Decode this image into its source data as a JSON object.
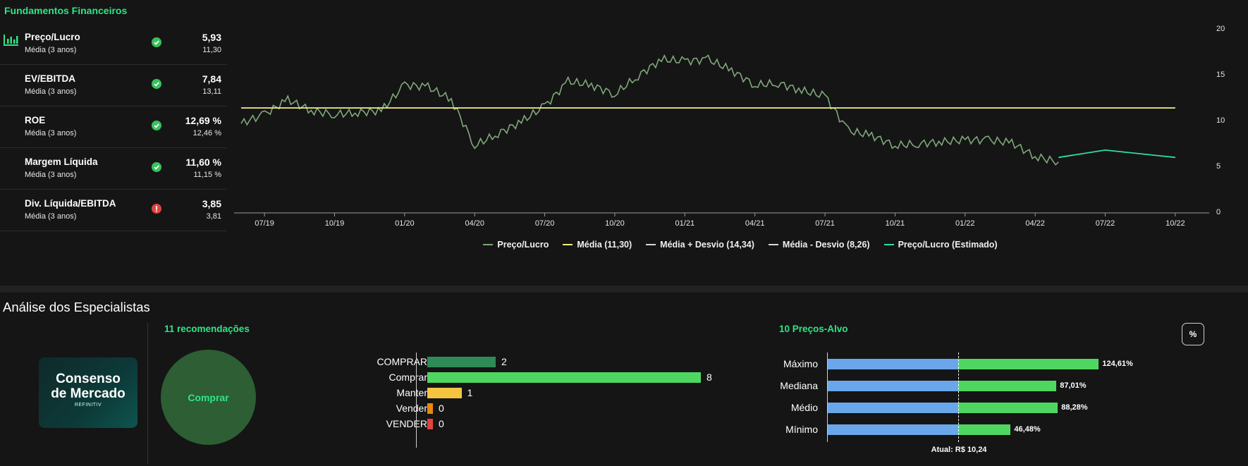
{
  "fundamentals": {
    "title": "Fundamentos Financeiros",
    "metrics": [
      {
        "name": "Preço/Lucro",
        "sub": "Média (3 anos)",
        "value": "5,93",
        "avg": "11,30",
        "status": "ok"
      },
      {
        "name": "EV/EBITDA",
        "sub": "Média (3 anos)",
        "value": "7,84",
        "avg": "13,11",
        "status": "ok"
      },
      {
        "name": "ROE",
        "sub": "Média (3 anos)",
        "value": "12,69 %",
        "avg": "12,46 %",
        "status": "ok"
      },
      {
        "name": "Margem Líquida",
        "sub": "Média (3 anos)",
        "value": "11,60 %",
        "avg": "11,15 %",
        "status": "ok"
      },
      {
        "name": "Div. Líquida/EBITDA",
        "sub": "Média (3 anos)",
        "value": "3,85",
        "avg": "3,81",
        "status": "warn"
      }
    ],
    "first_icon": "bar-chart-icon"
  },
  "chart_data": [
    {
      "type": "line",
      "x_tick_labels": [
        "07/19",
        "10/19",
        "01/20",
        "04/20",
        "07/20",
        "10/20",
        "01/21",
        "04/21",
        "07/21",
        "10/21",
        "01/22",
        "04/22",
        "07/22",
        "10/22"
      ],
      "y_tick_labels": [
        "20",
        "15",
        "10",
        "5",
        "0"
      ],
      "ylim": [
        0,
        20
      ],
      "y_axis_side": "right",
      "legend_position": "bottom",
      "series": [
        {
          "name": "Preço/Lucro",
          "color": "#7fa87a",
          "x": [
            "2019-06",
            "2019-07",
            "2019-08",
            "2019-09",
            "2019-10",
            "2019-11",
            "2019-12",
            "2020-01",
            "2020-02",
            "2020-03",
            "2020-04",
            "2020-05",
            "2020-06",
            "2020-07",
            "2020-08",
            "2020-09",
            "2020-10",
            "2020-11",
            "2020-12",
            "2021-01",
            "2021-02",
            "2021-03",
            "2021-04",
            "2021-05",
            "2021-06",
            "2021-07",
            "2021-08",
            "2021-09",
            "2021-10",
            "2021-11",
            "2021-12",
            "2022-01",
            "2022-02",
            "2022-03",
            "2022-04",
            "2022-05"
          ],
          "y": [
            9.6,
            10.6,
            12.2,
            11.0,
            10.6,
            10.8,
            11.0,
            13.8,
            13.6,
            12.2,
            7.2,
            8.5,
            9.8,
            11.5,
            14.2,
            13.8,
            12.8,
            14.8,
            16.6,
            16.4,
            16.6,
            15.4,
            13.8,
            14.0,
            13.2,
            12.6,
            8.8,
            8.3,
            7.2,
            7.4,
            7.6,
            7.8,
            7.8,
            7.5,
            6.0,
            5.4
          ]
        },
        {
          "name": "Média (11,30)",
          "color": "#f4ef8a",
          "x": [
            "2019-06",
            "2022-10"
          ],
          "y": [
            11.3,
            11.3
          ]
        },
        {
          "name": "Média + Desvio (14,34)",
          "color": "#d8d8d8",
          "x": [],
          "y": []
        },
        {
          "name": "Média - Desvio (8,26)",
          "color": "#d8d8d8",
          "x": [],
          "y": []
        },
        {
          "name": "Preço/Lucro (Estimado)",
          "color": "#2ee0a0",
          "x": [
            "2022-05",
            "2022-07",
            "2022-10"
          ],
          "y": [
            5.9,
            6.7,
            5.9
          ]
        }
      ]
    },
    {
      "type": "bar",
      "title": "11 recomendações",
      "categories": [
        "COMPRAR",
        "Comprar",
        "Manter",
        "Vender",
        "VENDER"
      ],
      "values": [
        2,
        8,
        1,
        0,
        0
      ],
      "colors": [
        "#2e8b57",
        "#4fd661",
        "#f5c542",
        "#e8890c",
        "#e0443e"
      ]
    },
    {
      "type": "bar",
      "title": "10 Preços-Alvo",
      "categories": [
        "Máximo",
        "Mediana",
        "Médio",
        "Mínimo"
      ],
      "values_pct": [
        124.61,
        87.01,
        88.28,
        46.48
      ],
      "labels": [
        "124,61%",
        "87,01%",
        "88,28%",
        "46,48%"
      ],
      "current_label": "Atual: R$ 10,24"
    }
  ],
  "analysts": {
    "title": "Análise dos Especialistas",
    "consensus_line1": "Consenso",
    "consensus_line2": "de Mercado",
    "consensus_brand": "REFINITIV",
    "recommendation": "Comprar",
    "pct_button": "%"
  }
}
